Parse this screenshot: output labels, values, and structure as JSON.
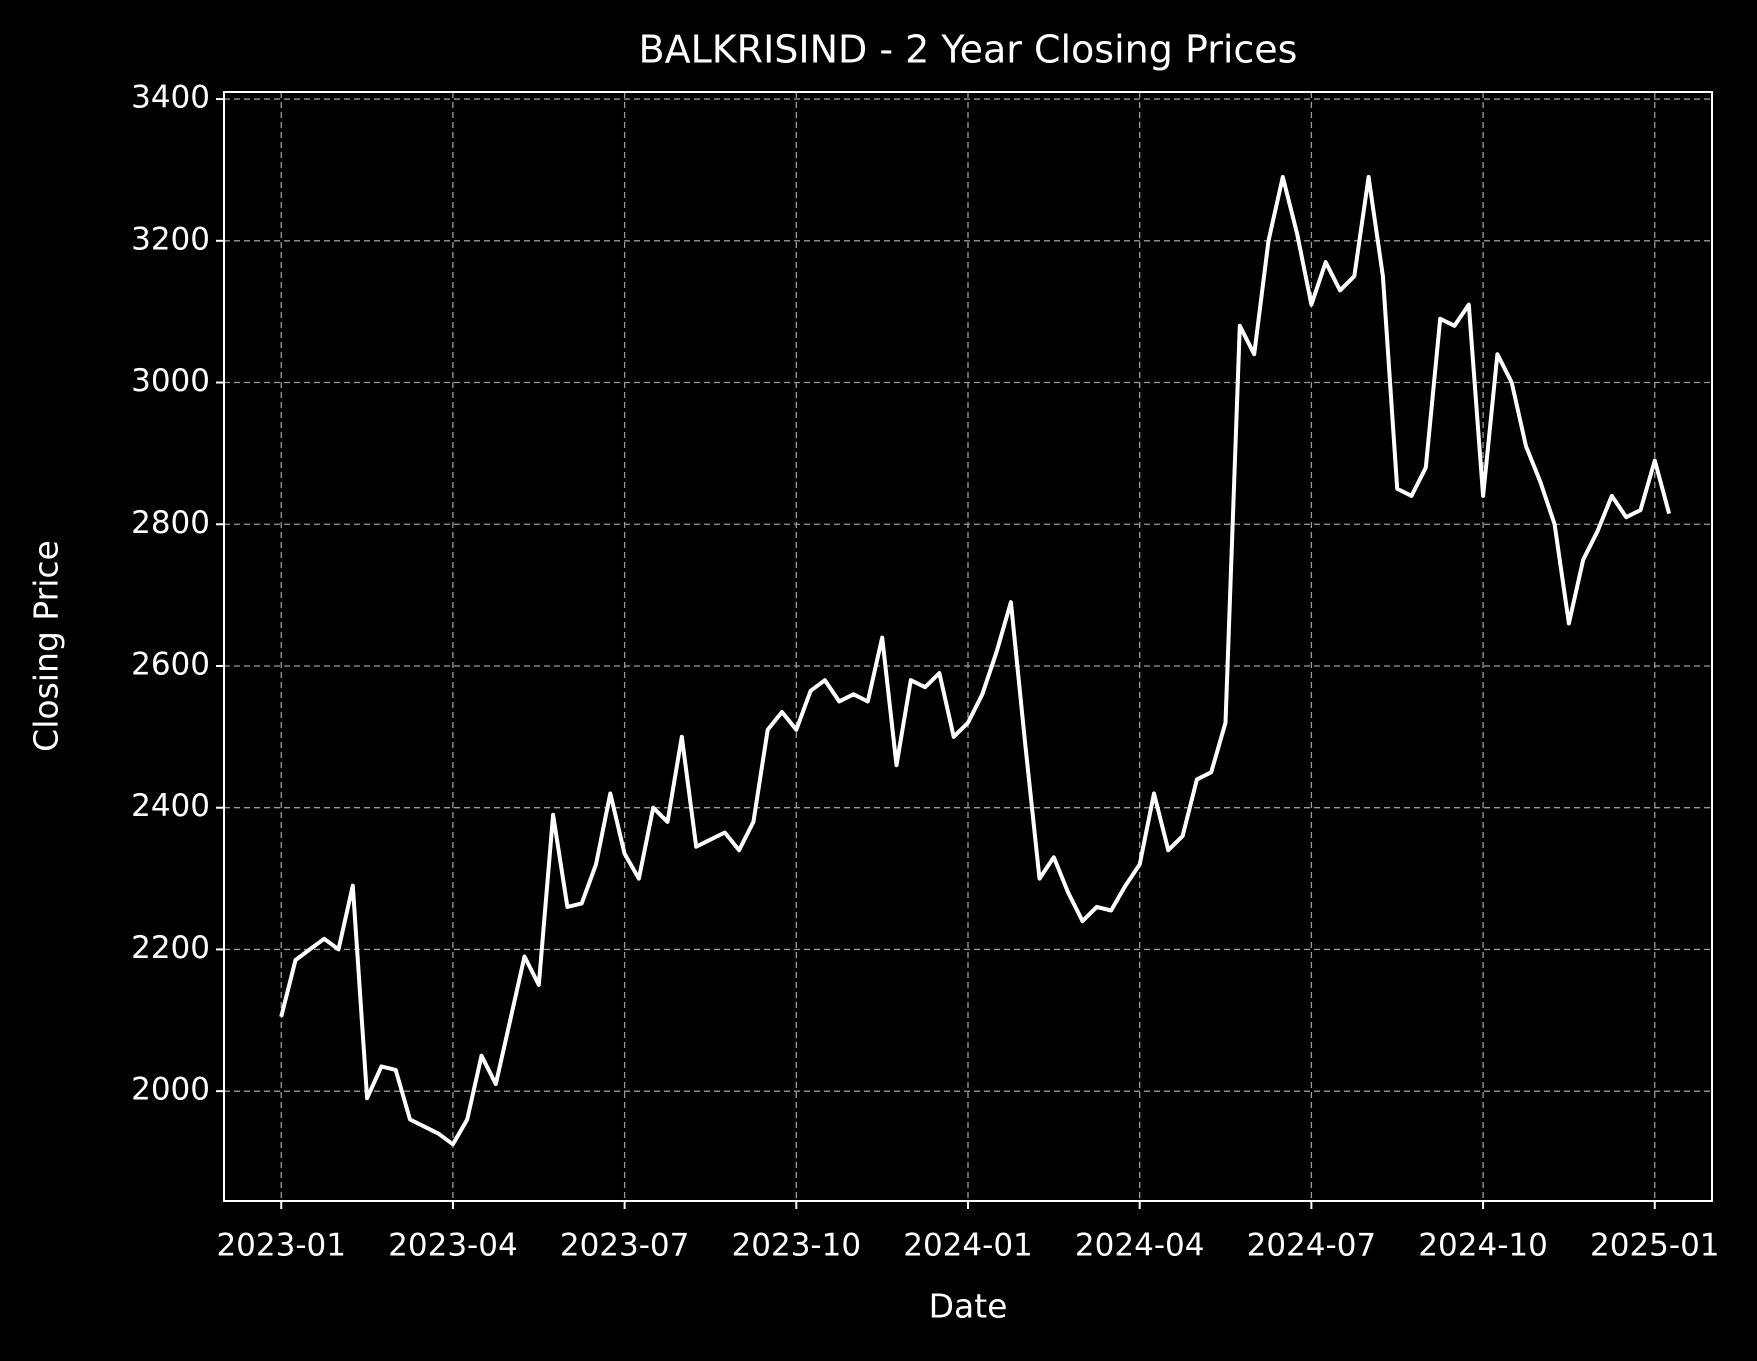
{
  "chart_data": {
    "type": "line",
    "title": "BALKRISIND - 2 Year Closing Prices",
    "x_label": "Date",
    "y_label": "Closing Price",
    "color": "#ffffff",
    "grid": true,
    "x": [
      "2023-01",
      "2023-01",
      "2023-01",
      "2023-01",
      "2023-02",
      "2023-02",
      "2023-02",
      "2023-02",
      "2023-03",
      "2023-03",
      "2023-03",
      "2023-03",
      "2023-04",
      "2023-04",
      "2023-04",
      "2023-04",
      "2023-05",
      "2023-05",
      "2023-05",
      "2023-05",
      "2023-06",
      "2023-06",
      "2023-06",
      "2023-06",
      "2023-07",
      "2023-07",
      "2023-07",
      "2023-07",
      "2023-08",
      "2023-08",
      "2023-08",
      "2023-08",
      "2023-09",
      "2023-09",
      "2023-09",
      "2023-09",
      "2023-10",
      "2023-10",
      "2023-10",
      "2023-10",
      "2023-11",
      "2023-11",
      "2023-11",
      "2023-11",
      "2023-12",
      "2023-12",
      "2023-12",
      "2023-12",
      "2024-01",
      "2024-01",
      "2024-01",
      "2024-01",
      "2024-02",
      "2024-02",
      "2024-02",
      "2024-02",
      "2024-03",
      "2024-03",
      "2024-03",
      "2024-03",
      "2024-04",
      "2024-04",
      "2024-04",
      "2024-04",
      "2024-05",
      "2024-05",
      "2024-05",
      "2024-05",
      "2024-06",
      "2024-06",
      "2024-06",
      "2024-06",
      "2024-07",
      "2024-07",
      "2024-07",
      "2024-07",
      "2024-08",
      "2024-08",
      "2024-08",
      "2024-08",
      "2024-09",
      "2024-09",
      "2024-09",
      "2024-09",
      "2024-10",
      "2024-10",
      "2024-10",
      "2024-10",
      "2024-11",
      "2024-11",
      "2024-11",
      "2024-11",
      "2024-12",
      "2024-12",
      "2024-12",
      "2024-12",
      "2025-01",
      "2025-01"
    ],
    "values": [
      2105,
      2185,
      2200,
      2215,
      2200,
      2290,
      1990,
      2035,
      2030,
      1960,
      1950,
      1940,
      1925,
      1960,
      2050,
      2010,
      2100,
      2190,
      2150,
      2390,
      2260,
      2265,
      2320,
      2420,
      2335,
      2300,
      2400,
      2380,
      2500,
      2345,
      2355,
      2365,
      2340,
      2380,
      2510,
      2535,
      2510,
      2565,
      2580,
      2550,
      2560,
      2550,
      2640,
      2460,
      2580,
      2570,
      2590,
      2500,
      2520,
      2560,
      2620,
      2690,
      2490,
      2300,
      2330,
      2280,
      2240,
      2260,
      2255,
      2290,
      2320,
      2420,
      2340,
      2360,
      2440,
      2450,
      2520,
      3080,
      3040,
      3200,
      3290,
      3210,
      3110,
      3170,
      3130,
      3150,
      3290,
      3150,
      2850,
      2840,
      2880,
      3090,
      3080,
      3110,
      2840,
      3040,
      3000,
      2910,
      2860,
      2800,
      2660,
      2750,
      2790,
      2840,
      2810,
      2820,
      2890,
      2815
    ],
    "xlim": [
      "2022-12",
      "2025-02"
    ],
    "xticks": [
      "2023-01",
      "2023-04",
      "2023-07",
      "2023-10",
      "2024-01",
      "2024-04",
      "2024-07",
      "2024-10",
      "2025-01"
    ],
    "ylim": [
      1845,
      3410
    ],
    "yticks": [
      2000,
      2200,
      2400,
      2600,
      2800,
      3000,
      3200,
      3400
    ]
  }
}
